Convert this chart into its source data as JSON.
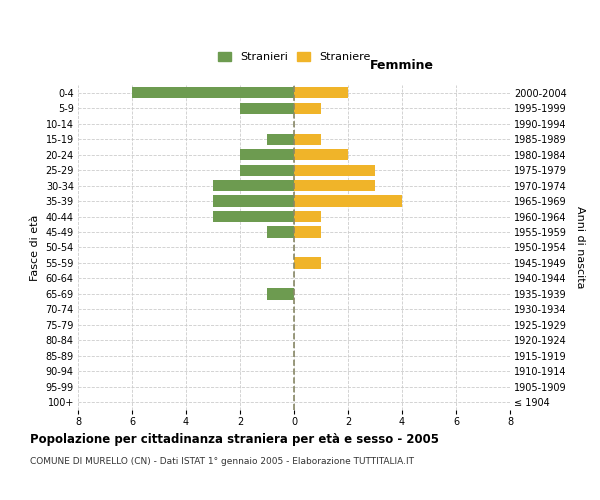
{
  "age_groups": [
    "100+",
    "95-99",
    "90-94",
    "85-89",
    "80-84",
    "75-79",
    "70-74",
    "65-69",
    "60-64",
    "55-59",
    "50-54",
    "45-49",
    "40-44",
    "35-39",
    "30-34",
    "25-29",
    "20-24",
    "15-19",
    "10-14",
    "5-9",
    "0-4"
  ],
  "birth_years": [
    "≤ 1904",
    "1905-1909",
    "1910-1914",
    "1915-1919",
    "1920-1924",
    "1925-1929",
    "1930-1934",
    "1935-1939",
    "1940-1944",
    "1945-1949",
    "1950-1954",
    "1955-1959",
    "1960-1964",
    "1965-1969",
    "1970-1974",
    "1975-1979",
    "1980-1984",
    "1985-1989",
    "1990-1994",
    "1995-1999",
    "2000-2004"
  ],
  "males": [
    0,
    0,
    0,
    0,
    0,
    0,
    0,
    1,
    0,
    0,
    0,
    1,
    3,
    3,
    3,
    2,
    2,
    1,
    0,
    2,
    6
  ],
  "females": [
    0,
    0,
    0,
    0,
    0,
    0,
    0,
    0,
    0,
    1,
    0,
    1,
    1,
    4,
    3,
    3,
    2,
    1,
    0,
    1,
    2
  ],
  "male_color": "#6d9b50",
  "female_color": "#f0b429",
  "title": "Popolazione per cittadinanza straniera per età e sesso - 2005",
  "subtitle": "COMUNE DI MURELLO (CN) - Dati ISTAT 1° gennaio 2005 - Elaborazione TUTTITALIA.IT",
  "right_label": "Femmine",
  "ylabel_left": "Fasce di età",
  "ylabel_right": "Anni di nascita",
  "legend_male": "Stranieri",
  "legend_female": "Straniere",
  "xlim": 8,
  "background_color": "#ffffff",
  "grid_color": "#cccccc",
  "dashed_line_color": "#888866"
}
